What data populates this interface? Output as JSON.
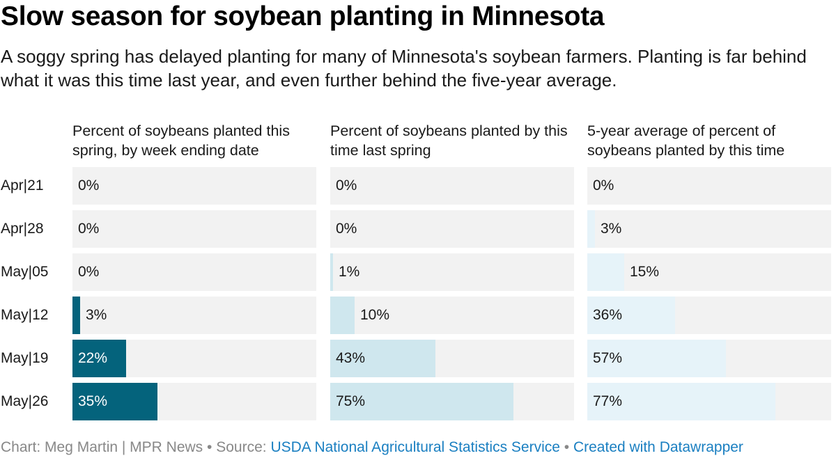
{
  "title": "Slow season for soybean planting in Minnesota",
  "subtitle": "A soggy spring has delayed planting for many of Minnesota's soybean farmers. Planting is far behind what it was this time last year, and even further behind the five-year average.",
  "chart_data": {
    "type": "bar",
    "orientation": "horizontal",
    "categories": [
      "Apr|21",
      "Apr|28",
      "May|05",
      "May|12",
      "May|19",
      "May|26"
    ],
    "xlim": [
      0,
      100
    ],
    "series": [
      {
        "name": "Percent of soybeans planted this spring, by week ending date",
        "values": [
          0,
          0,
          0,
          3,
          22,
          35
        ],
        "labels": [
          "0%",
          "0%",
          "0%",
          "3%",
          "22%",
          "35%"
        ],
        "color": "#04637c"
      },
      {
        "name": "Percent of soybeans planted by this time last spring",
        "values": [
          0,
          0,
          1,
          10,
          43,
          75
        ],
        "labels": [
          "0%",
          "0%",
          "1%",
          "10%",
          "43%",
          "75%"
        ],
        "color": "#cfe7ee"
      },
      {
        "name": "5-year average of percent of soybeans planted by this time",
        "values": [
          0,
          3,
          15,
          36,
          57,
          77
        ],
        "labels": [
          "0%",
          "3%",
          "15%",
          "36%",
          "57%",
          "77%"
        ],
        "color": "#e6f3f9"
      }
    ],
    "background_color": "#f2f2f2"
  },
  "footer": {
    "credit": "Chart: Meg Martin | MPR News",
    "sep1": " • ",
    "source_prefix": "Source: ",
    "source_link": "USDA National Agricultural Statistics Service",
    "sep2": " • ",
    "created_link": "Created with Datawrapper"
  }
}
